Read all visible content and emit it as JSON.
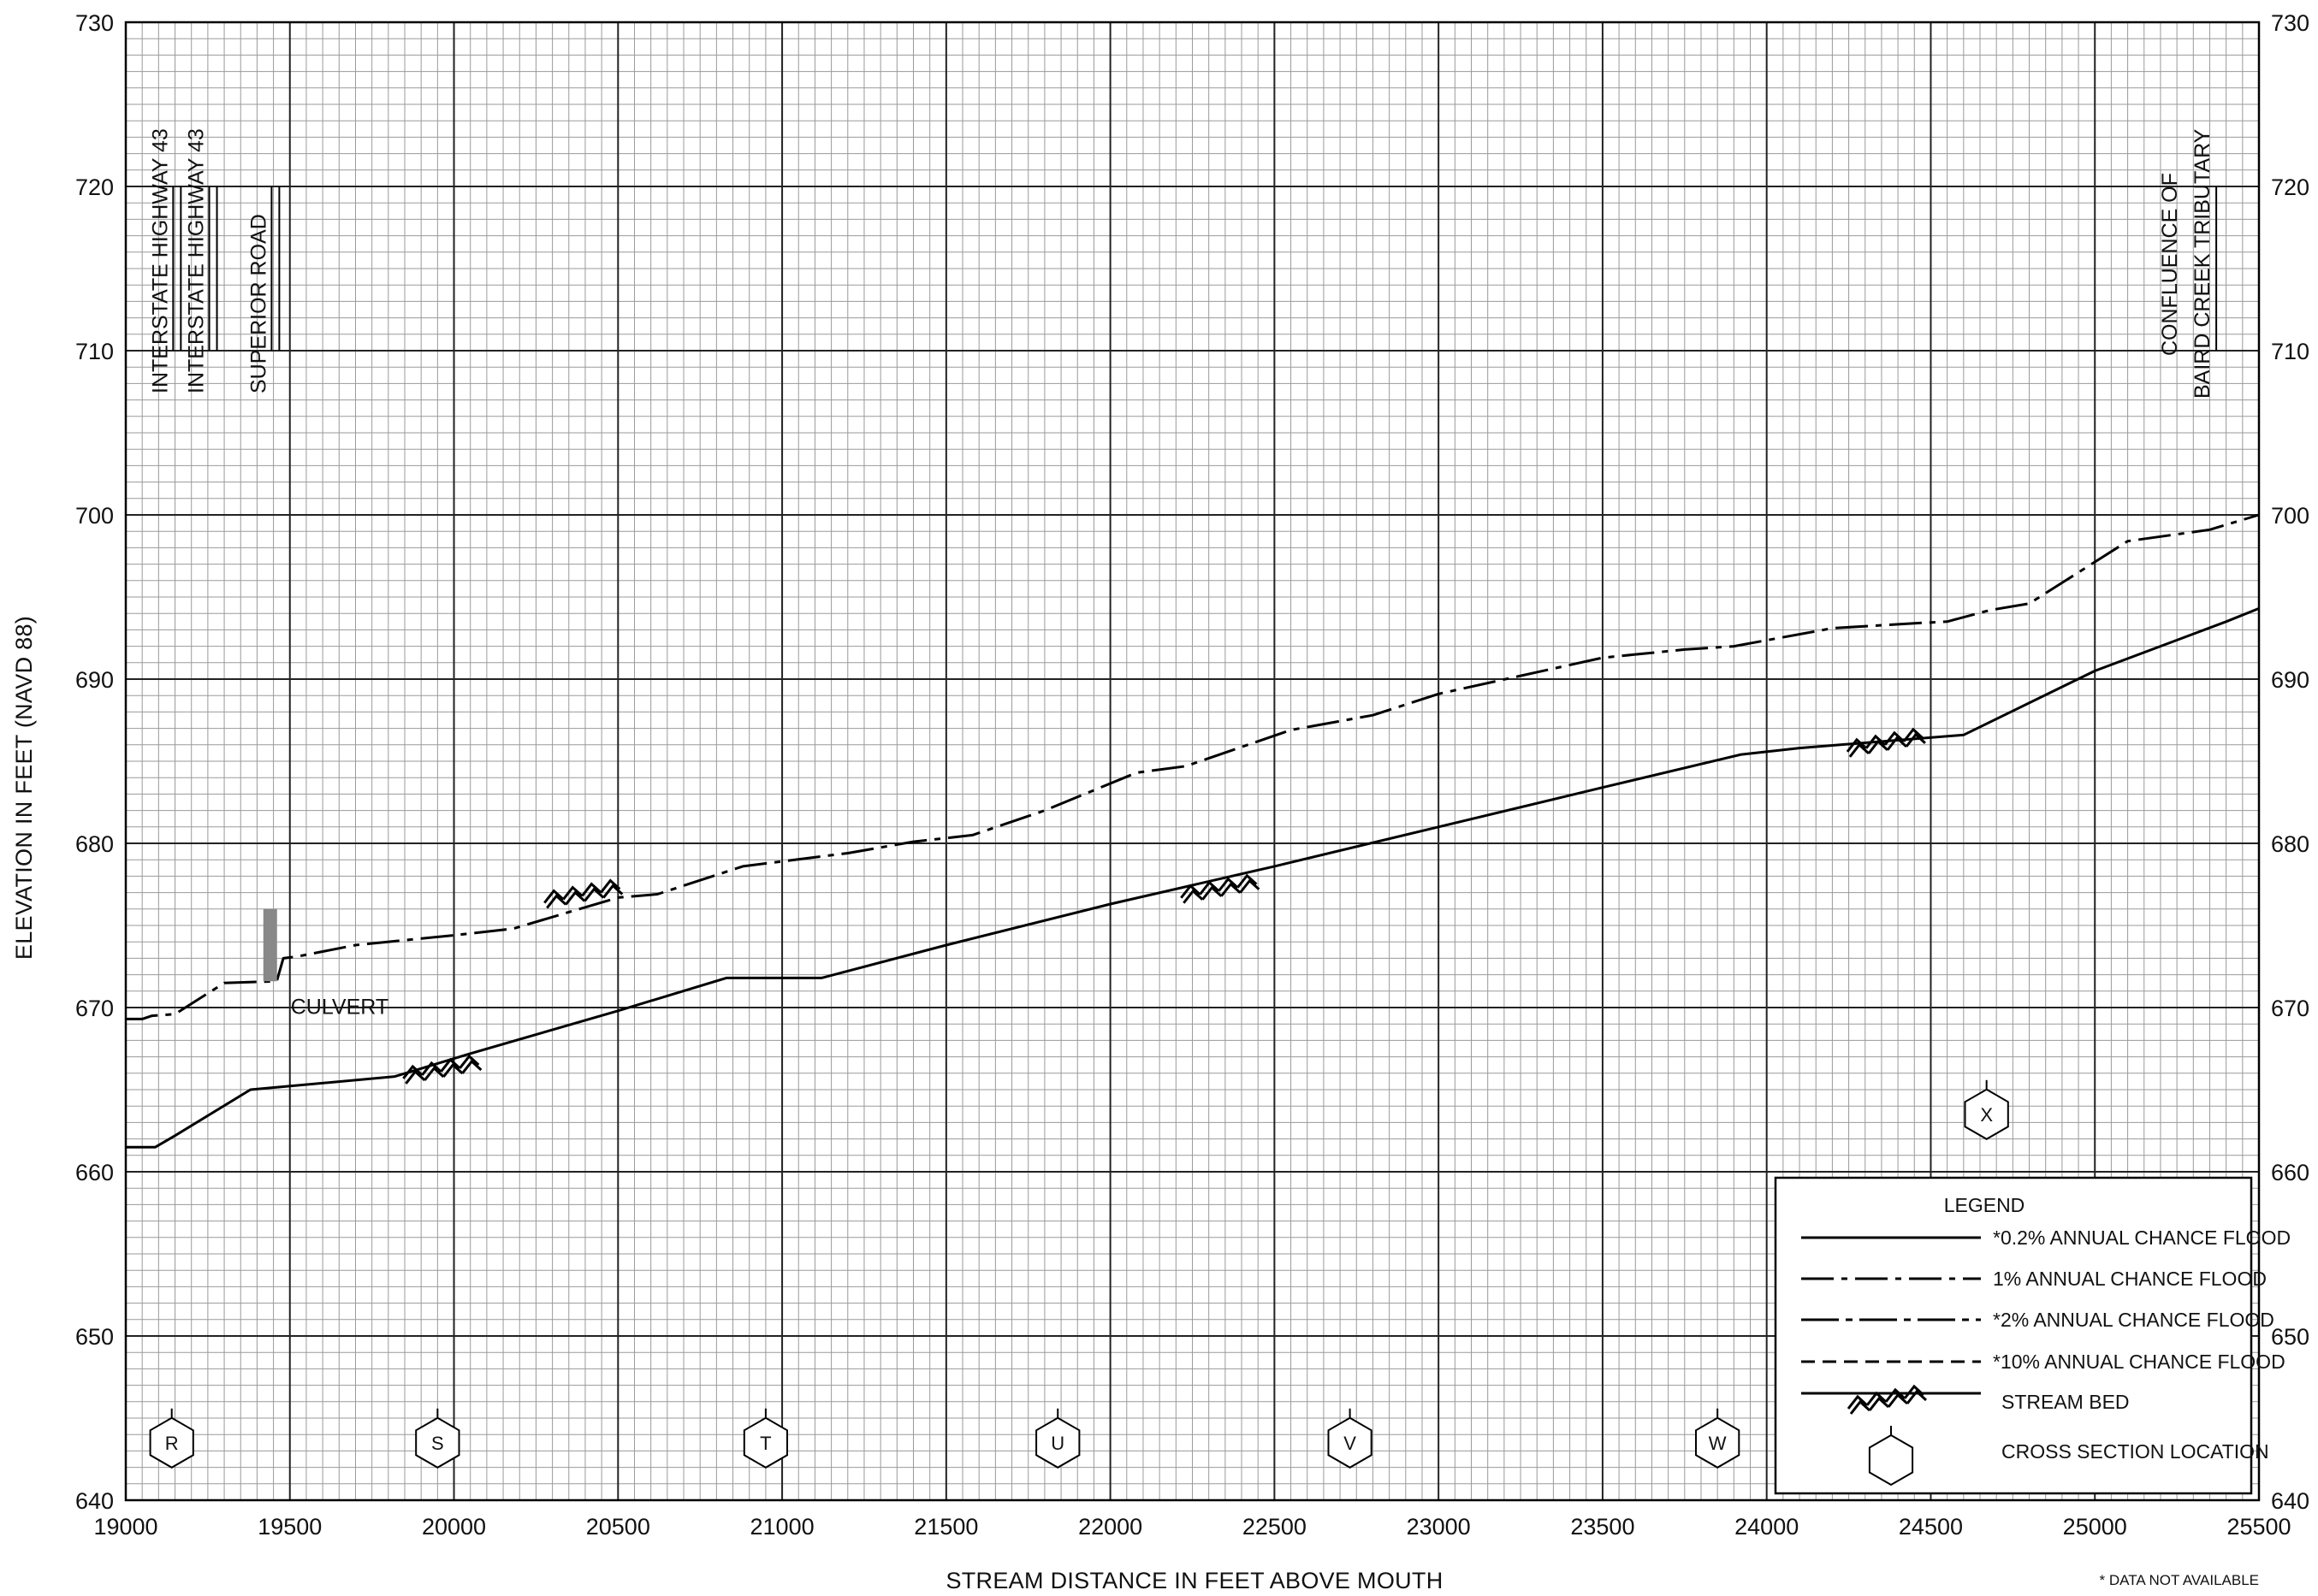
{
  "chart_data": {
    "type": "line",
    "xlabel": "STREAM DISTANCE IN FEET ABOVE MOUTH",
    "ylabel": "ELEVATION IN FEET (NAVD 88)",
    "xlim": [
      19000,
      25500
    ],
    "ylim": [
      640,
      730
    ],
    "x_ticks": [
      "19000",
      "19500",
      "20000",
      "20500",
      "21000",
      "21500",
      "22000",
      "22500",
      "23000",
      "23500",
      "24000",
      "24500",
      "25000",
      "25500"
    ],
    "y_ticks": [
      "640",
      "650",
      "660",
      "670",
      "680",
      "690",
      "700",
      "710",
      "720",
      "730"
    ],
    "grid": true,
    "series": [
      {
        "name": "*0.2% ANNUAL CHANCE FLOOD",
        "style": "solid",
        "points": [
          [
            19000,
            661.5
          ],
          [
            19090,
            661.5
          ],
          [
            19150,
            662.2
          ],
          [
            19380,
            665
          ],
          [
            19820,
            665.8
          ],
          [
            20050,
            667.2
          ],
          [
            20500,
            669.8
          ],
          [
            20830,
            671.8
          ],
          [
            21120,
            671.8
          ],
          [
            21500,
            673.8
          ],
          [
            22000,
            676.3
          ],
          [
            22500,
            678.6
          ],
          [
            23000,
            681
          ],
          [
            23500,
            683.4
          ],
          [
            23920,
            685.4
          ],
          [
            24100,
            685.8
          ],
          [
            24600,
            686.6
          ],
          [
            25000,
            690.5
          ],
          [
            25400,
            693.5
          ],
          [
            25500,
            694.3
          ]
        ]
      },
      {
        "name": "1% ANNUAL CHANCE FLOOD",
        "style": "dash-dot",
        "points": [
          [
            19000,
            669.3
          ],
          [
            19050,
            669.3
          ],
          [
            19080,
            669.5
          ],
          [
            19150,
            669.6
          ],
          [
            19300,
            671.5
          ],
          [
            19460,
            671.6
          ],
          [
            19480,
            673
          ],
          [
            19520,
            673.1
          ],
          [
            19700,
            673.8
          ],
          [
            20000,
            674.4
          ],
          [
            20180,
            674.8
          ],
          [
            20500,
            676.7
          ],
          [
            20620,
            676.9
          ],
          [
            20880,
            678.6
          ],
          [
            21200,
            679.4
          ],
          [
            21400,
            680.1
          ],
          [
            21580,
            680.5
          ],
          [
            21800,
            682
          ],
          [
            22080,
            684.3
          ],
          [
            22230,
            684.7
          ],
          [
            22550,
            686.9
          ],
          [
            22800,
            687.8
          ],
          [
            23000,
            689.1
          ],
          [
            23500,
            691.3
          ],
          [
            23750,
            691.8
          ],
          [
            23900,
            692
          ],
          [
            24200,
            693.1
          ],
          [
            24450,
            693.4
          ],
          [
            24550,
            693.5
          ],
          [
            24680,
            694.2
          ],
          [
            24800,
            694.6
          ],
          [
            25100,
            698.4
          ],
          [
            25350,
            699.1
          ],
          [
            25500,
            700
          ]
        ]
      },
      {
        "name": "*2% ANNUAL CHANCE FLOOD",
        "style": "dash-dot-long",
        "points": []
      },
      {
        "name": "*10% ANNUAL CHANCE FLOOD",
        "style": "dashed",
        "points": []
      }
    ],
    "stream_bed_marks": [
      [
        19950,
        666.2
      ],
      [
        20380,
        676.9
      ],
      [
        22320,
        677.2
      ],
      [
        24350,
        686.1
      ]
    ],
    "cross_sections": [
      {
        "label": "R",
        "x": 19140,
        "y": 643.5
      },
      {
        "label": "S",
        "x": 19950,
        "y": 643.5
      },
      {
        "label": "T",
        "x": 20950,
        "y": 643.5
      },
      {
        "label": "U",
        "x": 21840,
        "y": 643.5
      },
      {
        "label": "V",
        "x": 22730,
        "y": 643.5
      },
      {
        "label": "W",
        "x": 23850,
        "y": 643.5
      },
      {
        "label": "X",
        "x": 24670,
        "y": 663.5
      }
    ],
    "structures": [
      {
        "label": "INTERSTATE HIGHWAY 43",
        "x": 19100
      },
      {
        "label": "INTERSTATE HIGHWAY 43",
        "x": 19210
      },
      {
        "label": "SUPERIOR ROAD",
        "x": 19400
      }
    ],
    "confluence": {
      "line1": "CONFLUENCE OF",
      "line2": "BAIRD CREEK TRIBUTARY",
      "x": 25250
    },
    "culvert": {
      "label": "CULVERT",
      "x": 19440,
      "y_low": 671.6,
      "y_high": 676
    },
    "legend": {
      "title": "LEGEND",
      "items": [
        "*0.2% ANNUAL CHANCE FLOOD",
        "1% ANNUAL CHANCE FLOOD",
        "*2% ANNUAL CHANCE FLOOD",
        "*10% ANNUAL CHANCE FLOOD",
        "STREAM BED",
        "CROSS SECTION LOCATION"
      ],
      "placement": "bottom-right"
    },
    "footnote": "* DATA NOT AVAILABLE"
  }
}
